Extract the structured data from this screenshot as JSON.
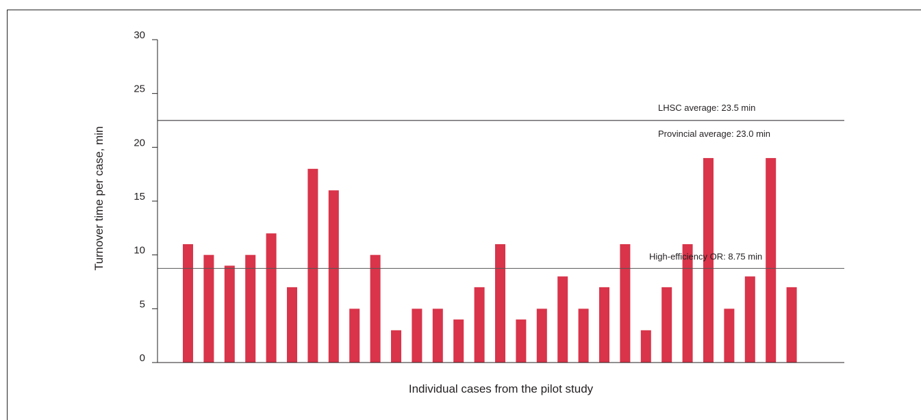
{
  "chart_data": {
    "type": "bar",
    "xlabel": "Individual cases from the pilot study",
    "ylabel": "Turnover time per case, min",
    "ylim": [
      0,
      30
    ],
    "yticks": [
      0,
      5,
      10,
      15,
      20,
      25,
      30
    ],
    "values": [
      11,
      10,
      9,
      10,
      12,
      7,
      18,
      16,
      5,
      10,
      3,
      5,
      5,
      4,
      7,
      11,
      4,
      5,
      8,
      5,
      7,
      11,
      3,
      7,
      11,
      19,
      5,
      8,
      19,
      7
    ],
    "bar_color": "#d9344a",
    "reference_lines": [
      {
        "label": "LHSC average: 23.5 min",
        "value": 23.5
      },
      {
        "label": "Provincial average: 23.0 min",
        "value": 23.0
      },
      {
        "label": "High-efficiency OR: 8.75 min",
        "value": 8.75
      }
    ],
    "grid": false,
    "legend": "none"
  }
}
